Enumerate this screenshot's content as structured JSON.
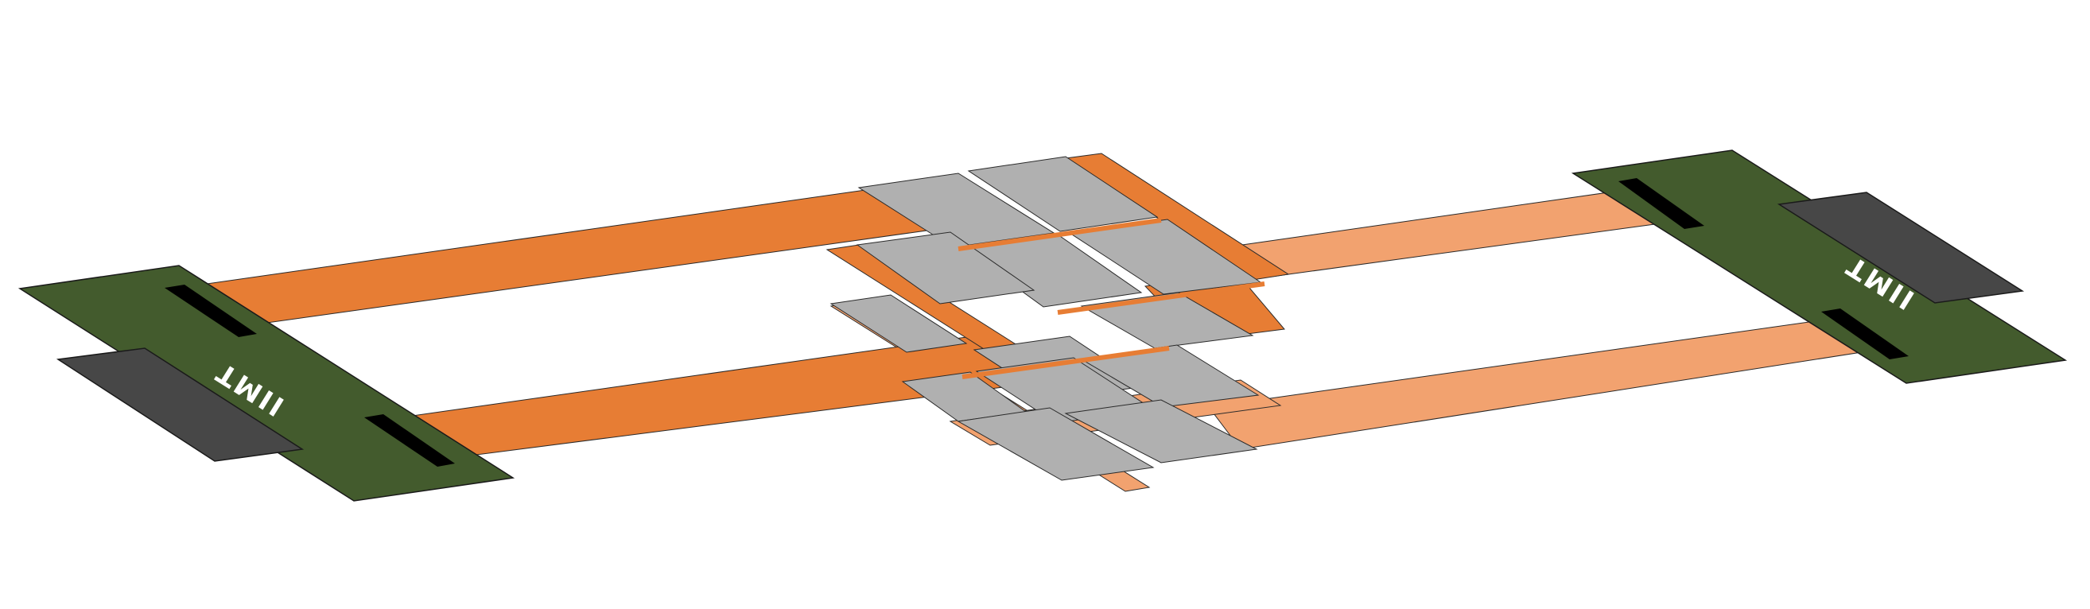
{
  "diagram": {
    "boards": [
      {
        "id": "left",
        "label": "TMII"
      },
      {
        "id": "right",
        "label": "TMII"
      }
    ],
    "colors": {
      "board_green": "#435b2d",
      "connector_gray": "#474747",
      "slot_black": "#000000",
      "flex_dark_orange": "#e77d34",
      "flex_light_orange": "#f2a26f",
      "stiffener_gray": "#b0b0b0",
      "outline": "#2a2a2a"
    }
  }
}
